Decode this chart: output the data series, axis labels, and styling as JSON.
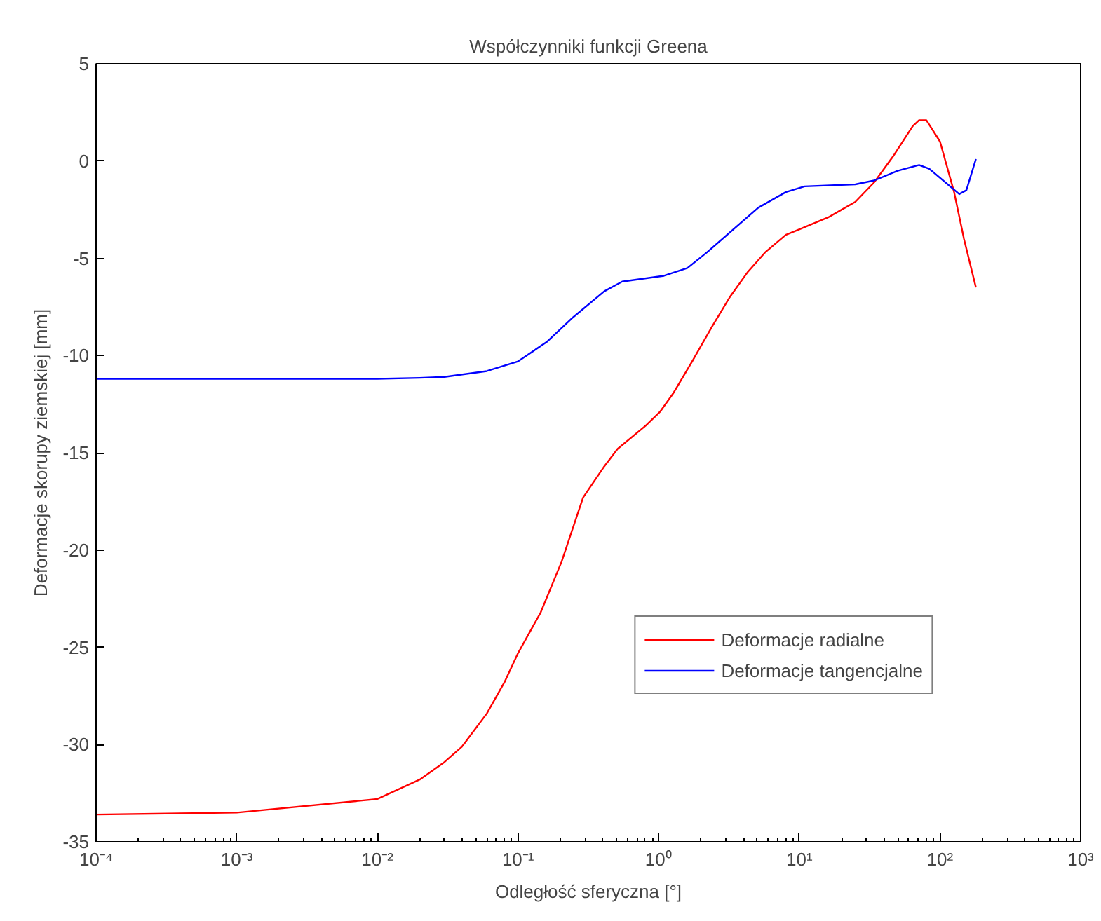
{
  "chart_data": {
    "type": "line",
    "title": "Współczynniki funkcji Greena",
    "xlabel": "Odległość sferyczna [°]",
    "ylabel": "Deformacje skorupy ziemskiej [mm]",
    "log": "x",
    "xlim": [
      0.0001,
      1000
    ],
    "xticks": [
      {
        "value": 0.0001,
        "label": "10⁻⁴"
      },
      {
        "value": 0.001,
        "label": "10⁻³"
      },
      {
        "value": 0.01,
        "label": "10⁻²"
      },
      {
        "value": 0.1,
        "label": "10⁻¹"
      },
      {
        "value": 1,
        "label": "10⁰"
      },
      {
        "value": 10,
        "label": "10¹"
      },
      {
        "value": 100,
        "label": "10²"
      },
      {
        "value": 1000,
        "label": "10³"
      }
    ],
    "ylim": [
      -35,
      5
    ],
    "yticks": [
      -35,
      -30,
      -25,
      -20,
      -15,
      -10,
      -5,
      0,
      5
    ],
    "grid": false,
    "legend": "bottom right",
    "series": [
      {
        "name": "Deformacje radialne",
        "color": "#ff0000",
        "x": [
          0.0001,
          0.001,
          0.01,
          0.02,
          0.03,
          0.04,
          0.06,
          0.08,
          0.1,
          0.145,
          0.204,
          0.29,
          0.41,
          0.51,
          0.81,
          1.02,
          1.28,
          1.73,
          2.4,
          3.2,
          4.3,
          5.7,
          8.0,
          10.1,
          16,
          20,
          25,
          34,
          47,
          64,
          71,
          80,
          100,
          126,
          148,
          180
        ],
        "values": [
          -33.6,
          -33.5,
          -32.8,
          -31.8,
          -30.9,
          -30.1,
          -28.4,
          -26.8,
          -25.3,
          -23.2,
          -20.6,
          -17.3,
          -15.7,
          -14.8,
          -13.6,
          -12.9,
          -11.9,
          -10.3,
          -8.5,
          -7.0,
          -5.7,
          -4.7,
          -3.8,
          -3.5,
          -2.9,
          -2.5,
          -2.1,
          -1.1,
          0.3,
          1.8,
          2.1,
          2.1,
          1.0,
          -1.6,
          -4.0,
          -6.5
        ]
      },
      {
        "name": "Deformacje tangencjalne",
        "color": "#0000ff",
        "x": [
          0.0001,
          0.001,
          0.01,
          0.02,
          0.03,
          0.06,
          0.1,
          0.16,
          0.24,
          0.41,
          0.55,
          1.09,
          1.6,
          2.2,
          5.1,
          8,
          10.9,
          25,
          34,
          50,
          71,
          84,
          118,
          137,
          154,
          180
        ],
        "values": [
          -11.2,
          -11.2,
          -11.2,
          -11.15,
          -11.1,
          -10.8,
          -10.3,
          -9.3,
          -8.1,
          -6.7,
          -6.2,
          -5.9,
          -5.5,
          -4.7,
          -2.4,
          -1.6,
          -1.3,
          -1.2,
          -1.0,
          -0.5,
          -0.2,
          -0.4,
          -1.3,
          -1.7,
          -1.5,
          0.1
        ]
      }
    ]
  }
}
